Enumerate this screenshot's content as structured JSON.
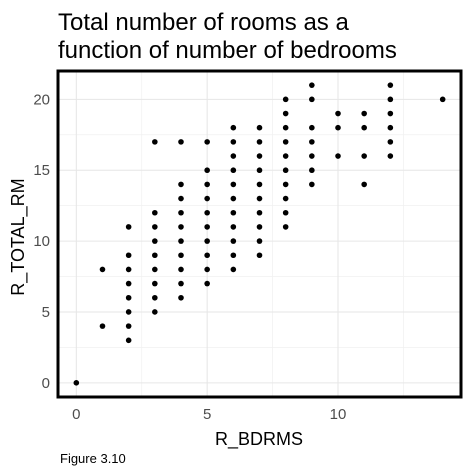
{
  "caption": "Figure 3.10",
  "chart_data": {
    "type": "scatter",
    "title": [
      "Total number of rooms as a",
      "function of number of bedrooms"
    ],
    "xlabel": "R_BDRMS",
    "ylabel": "R_TOTAL_RM",
    "xlim": [
      -0.7,
      14.7
    ],
    "ylim": [
      -1.0,
      22.0
    ],
    "xticks": [
      0,
      5,
      10
    ],
    "yticks": [
      0,
      5,
      10,
      15,
      20
    ],
    "grid": true,
    "colors": {
      "point": "#000000",
      "grid": "#e6e6e6",
      "frame": "#000000",
      "tick_label": "#4d4d4d"
    },
    "points": [
      [
        0,
        0
      ],
      [
        1,
        4
      ],
      [
        1,
        8
      ],
      [
        2,
        3
      ],
      [
        2,
        4
      ],
      [
        2,
        5
      ],
      [
        2,
        6
      ],
      [
        2,
        7
      ],
      [
        2,
        8
      ],
      [
        2,
        9
      ],
      [
        2,
        11
      ],
      [
        3,
        5
      ],
      [
        3,
        6
      ],
      [
        3,
        7
      ],
      [
        3,
        8
      ],
      [
        3,
        9
      ],
      [
        3,
        10
      ],
      [
        3,
        11
      ],
      [
        3,
        12
      ],
      [
        3,
        17
      ],
      [
        4,
        6
      ],
      [
        4,
        7
      ],
      [
        4,
        8
      ],
      [
        4,
        9
      ],
      [
        4,
        10
      ],
      [
        4,
        11
      ],
      [
        4,
        12
      ],
      [
        4,
        13
      ],
      [
        4,
        14
      ],
      [
        4,
        17
      ],
      [
        5,
        7
      ],
      [
        5,
        8
      ],
      [
        5,
        9
      ],
      [
        5,
        10
      ],
      [
        5,
        11
      ],
      [
        5,
        12
      ],
      [
        5,
        13
      ],
      [
        5,
        14
      ],
      [
        5,
        15
      ],
      [
        5,
        17
      ],
      [
        6,
        8
      ],
      [
        6,
        9
      ],
      [
        6,
        10
      ],
      [
        6,
        11
      ],
      [
        6,
        12
      ],
      [
        6,
        13
      ],
      [
        6,
        14
      ],
      [
        6,
        15
      ],
      [
        6,
        16
      ],
      [
        6,
        17
      ],
      [
        6,
        18
      ],
      [
        7,
        9
      ],
      [
        7,
        10
      ],
      [
        7,
        11
      ],
      [
        7,
        12
      ],
      [
        7,
        13
      ],
      [
        7,
        14
      ],
      [
        7,
        15
      ],
      [
        7,
        16
      ],
      [
        7,
        17
      ],
      [
        7,
        18
      ],
      [
        8,
        11
      ],
      [
        8,
        12
      ],
      [
        8,
        13
      ],
      [
        8,
        14
      ],
      [
        8,
        15
      ],
      [
        8,
        16
      ],
      [
        8,
        17
      ],
      [
        8,
        18
      ],
      [
        8,
        19
      ],
      [
        8,
        20
      ],
      [
        9,
        14
      ],
      [
        9,
        15
      ],
      [
        9,
        16
      ],
      [
        9,
        17
      ],
      [
        9,
        18
      ],
      [
        9,
        20
      ],
      [
        9,
        21
      ],
      [
        10,
        16
      ],
      [
        10,
        18
      ],
      [
        10,
        19
      ],
      [
        11,
        14
      ],
      [
        11,
        16
      ],
      [
        11,
        18
      ],
      [
        11,
        19
      ],
      [
        12,
        16
      ],
      [
        12,
        17
      ],
      [
        12,
        18
      ],
      [
        12,
        19
      ],
      [
        12,
        20
      ],
      [
        12,
        21
      ],
      [
        14,
        20
      ]
    ]
  }
}
